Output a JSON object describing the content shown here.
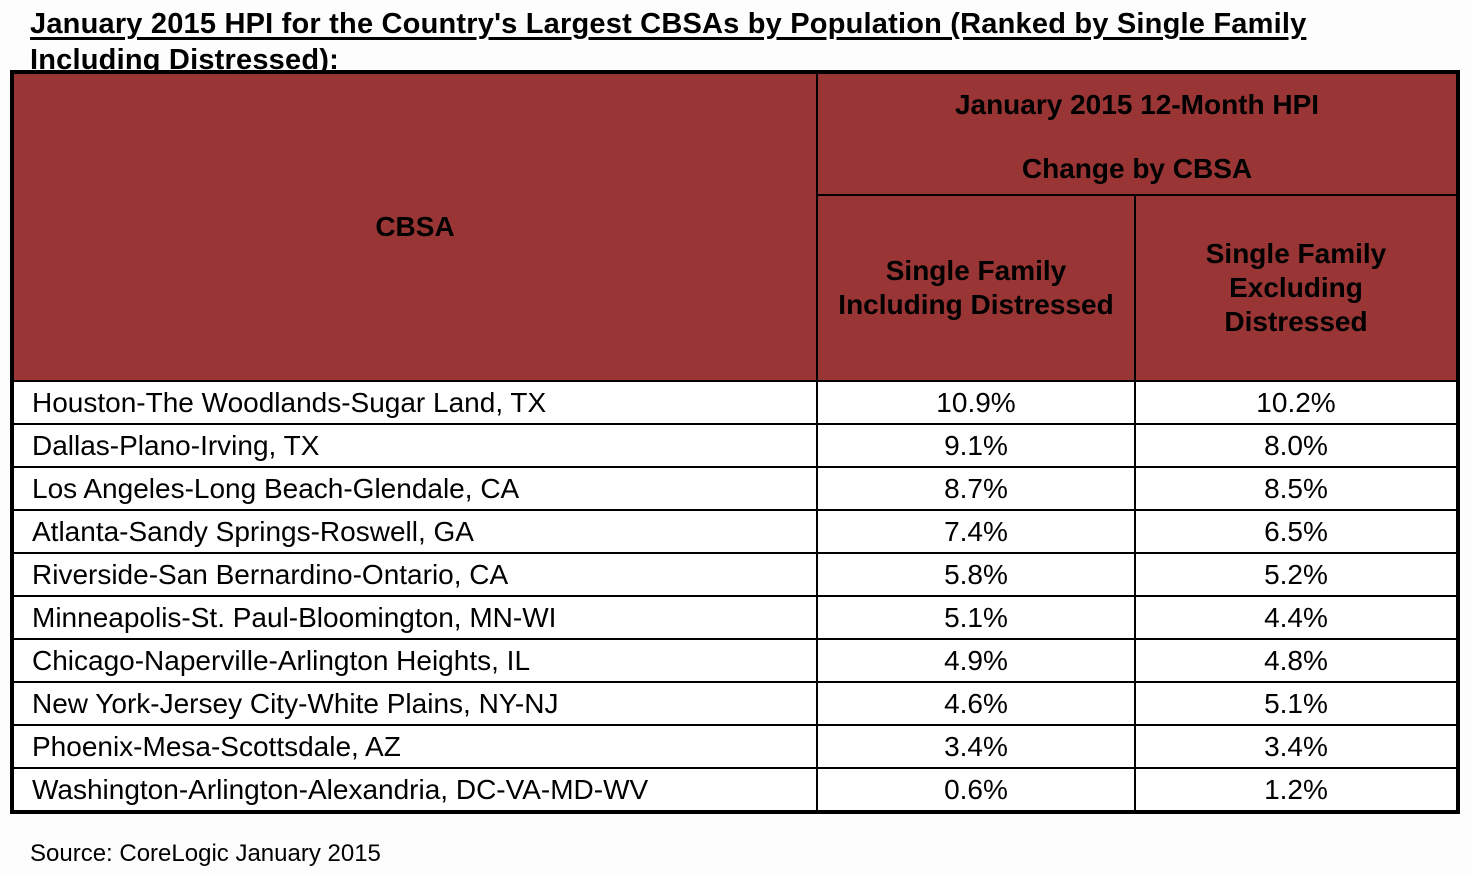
{
  "title_lines": [
    "January 2015 HPI for the Country's Largest CBSAs by Population (Ranked by Single Family",
    "Including Distressed):"
  ],
  "table": {
    "cbsa_header": "CBSA",
    "group_header_line1": "January 2015 12-Month HPI",
    "group_header_line2": "Change by CBSA",
    "columns": [
      "Single Family Including Distressed",
      "Single Family Excluding Distressed"
    ],
    "rows": [
      {
        "cbsa": "Houston-The Woodlands-Sugar Land, TX",
        "including": "10.9%",
        "excluding": "10.2%"
      },
      {
        "cbsa": "Dallas-Plano-Irving, TX",
        "including": "9.1%",
        "excluding": "8.0%"
      },
      {
        "cbsa": "Los Angeles-Long Beach-Glendale, CA",
        "including": "8.7%",
        "excluding": "8.5%"
      },
      {
        "cbsa": "Atlanta-Sandy Springs-Roswell, GA",
        "including": "7.4%",
        "excluding": "6.5%"
      },
      {
        "cbsa": "Riverside-San Bernardino-Ontario, CA",
        "including": "5.8%",
        "excluding": "5.2%"
      },
      {
        "cbsa": "Minneapolis-St. Paul-Bloomington, MN-WI",
        "including": "5.1%",
        "excluding": "4.4%"
      },
      {
        "cbsa": "Chicago-Naperville-Arlington Heights, IL",
        "including": "4.9%",
        "excluding": "4.8%"
      },
      {
        "cbsa": "New York-Jersey City-White Plains, NY-NJ",
        "including": "4.6%",
        "excluding": "5.1%"
      },
      {
        "cbsa": "Phoenix-Mesa-Scottsdale, AZ",
        "including": "3.4%",
        "excluding": "3.4%"
      },
      {
        "cbsa": "Washington-Arlington-Alexandria, DC-VA-MD-WV",
        "including": "0.6%",
        "excluding": "1.2%"
      }
    ]
  },
  "source": "Source: CoreLogic January 2015",
  "colors": {
    "header_bg": "#993534",
    "border": "#000000",
    "text": "#000000",
    "table_bg": "#ffffff"
  }
}
